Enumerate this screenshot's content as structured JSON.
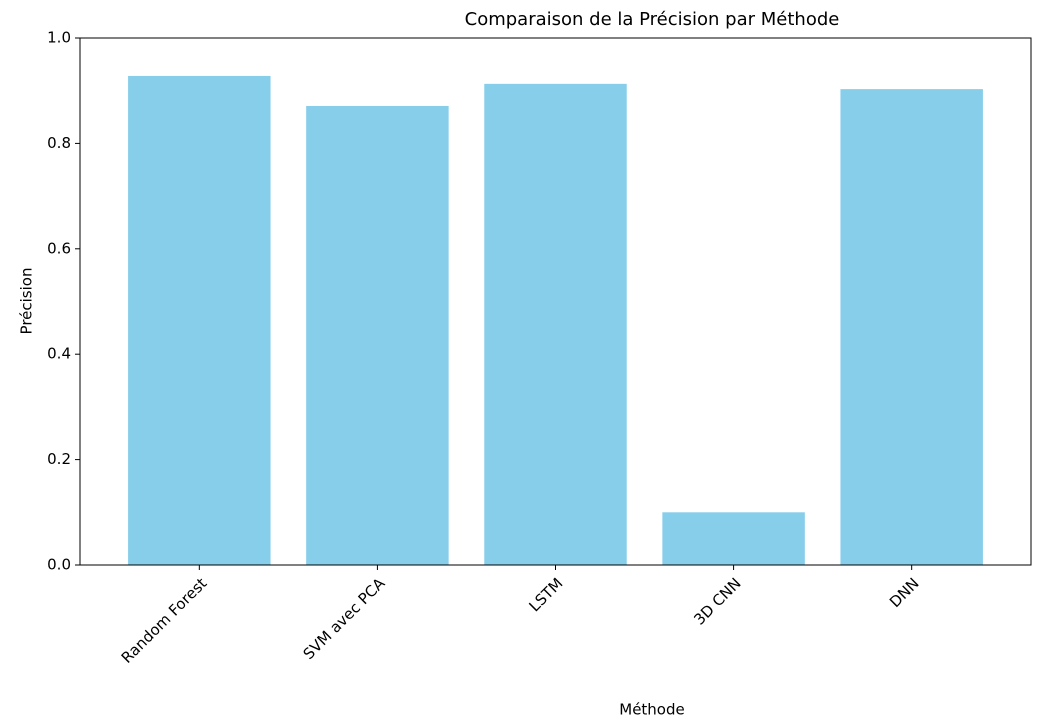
{
  "chart_data": {
    "type": "bar",
    "title": "Comparaison de la Précision par Méthode",
    "x_label": "Méthode",
    "y_label": "Précision",
    "categories": [
      "Random Forest",
      "SVM avec PCA",
      "LSTM",
      "3D CNN",
      "DNN"
    ],
    "values": [
      0.928,
      0.871,
      0.913,
      0.1,
      0.903
    ],
    "color": "#87ceeb",
    "ylim": [
      0,
      1.0
    ],
    "yticks": [
      {
        "value": 0,
        "label": "0.0"
      },
      0.2,
      0.4,
      0.6,
      0.8,
      {
        "value": 1.0,
        "label": "1.0"
      }
    ],
    "grid": false
  }
}
